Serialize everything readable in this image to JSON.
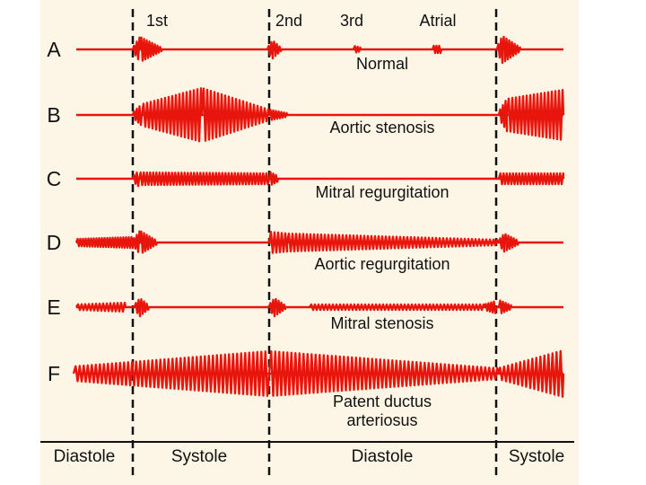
{
  "header": {
    "sound_labels": [
      "1st",
      "2nd",
      "3rd",
      "Atrial"
    ]
  },
  "rows": [
    {
      "letter": "A",
      "label": [
        "Normal"
      ]
    },
    {
      "letter": "B",
      "label": [
        "Aortic stenosis"
      ]
    },
    {
      "letter": "C",
      "label": [
        "Mitral regurgitation"
      ]
    },
    {
      "letter": "D",
      "label": [
        "Aortic regurgitation"
      ]
    },
    {
      "letter": "E",
      "label": [
        "Mitral stenosis"
      ]
    },
    {
      "letter": "F",
      "label": [
        "Patent ductus",
        "arteriosus"
      ]
    }
  ],
  "footer": [
    "Diastole",
    "Systole",
    "Diastole",
    "Systole"
  ]
}
